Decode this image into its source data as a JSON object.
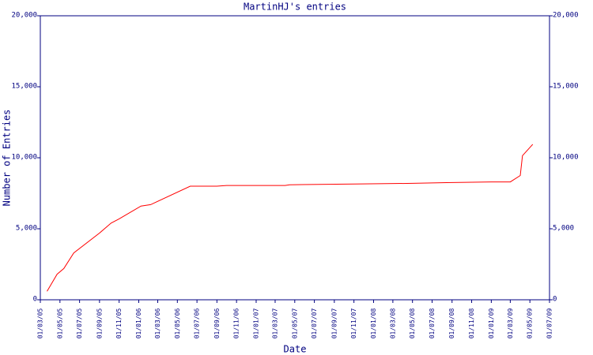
{
  "chart_data": {
    "type": "line",
    "title": "MartinHJ's entries",
    "x_label": "Date",
    "y_label": "Number of Entries",
    "x": [
      "22/03/05",
      "22/04/05",
      "13/05/05",
      "13/06/05",
      "01/09/05",
      "07/10/05",
      "01/11/05",
      "08/01/06",
      "07/02/06",
      "10/06/06",
      "01/09/06",
      "01/10/06",
      "01/04/07",
      "15/04/07",
      "01/11/07",
      "01/05/08",
      "15/08/08",
      "01/01/09",
      "01/03/09",
      "01/04/09",
      "08/04/09",
      "10/05/09"
    ],
    "values": [
      600,
      1800,
      2200,
      3300,
      4700,
      5400,
      5700,
      6600,
      6700,
      8000,
      8000,
      8050,
      8050,
      8100,
      8150,
      8200,
      8250,
      8300,
      8300,
      8750,
      10150,
      10950
    ],
    "color": "#ff0000",
    "axis_color": "#000080",
    "xlim": [
      "01/03/05",
      "01/07/09"
    ],
    "xticks": [
      "01/03/05",
      "01/05/05",
      "01/07/05",
      "01/09/05",
      "01/11/05",
      "01/01/06",
      "01/03/06",
      "01/05/06",
      "01/07/06",
      "01/09/06",
      "01/11/06",
      "01/01/07",
      "01/03/07",
      "01/05/07",
      "01/07/07",
      "01/09/07",
      "01/11/07",
      "01/01/08",
      "01/03/08",
      "01/05/08",
      "01/07/08",
      "01/09/08",
      "01/11/08",
      "01/01/09",
      "01/03/09",
      "01/05/09",
      "01/07/09"
    ],
    "ylim": [
      0,
      20000
    ],
    "yticks": [
      {
        "value": 0,
        "label": "0"
      },
      {
        "value": 5000,
        "label": "5,000"
      },
      {
        "value": 10000,
        "label": "10,000"
      },
      {
        "value": 15000,
        "label": "15,000"
      },
      {
        "value": 20000,
        "label": "20,000"
      }
    ],
    "grid": false
  }
}
